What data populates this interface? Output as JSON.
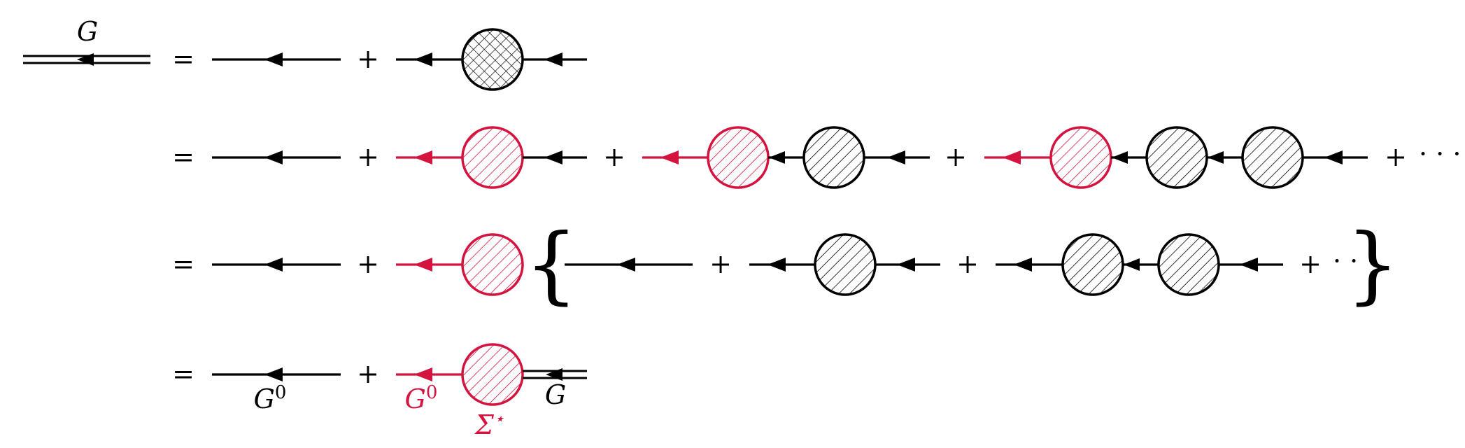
{
  "colors": {
    "ink": "#000000",
    "accent": "#d4133f"
  },
  "labels": {
    "G": "G",
    "G0": "G",
    "G0_sup": "0",
    "sigma": "Σ",
    "sigma_sup": "⋆"
  },
  "symbols": {
    "equals": "=",
    "plus": "+",
    "ellipsis": "· · ·",
    "brace_open": "{",
    "brace_close": "}"
  }
}
